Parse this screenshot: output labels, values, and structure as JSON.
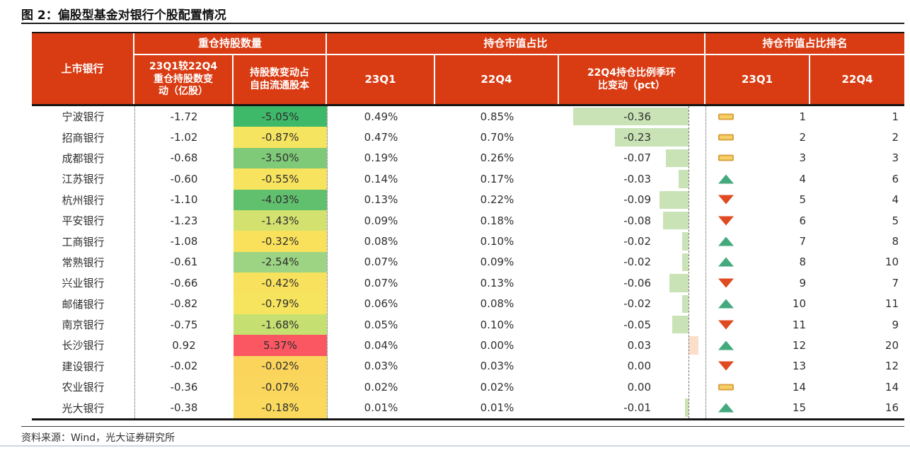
{
  "title": "图 2：偏股型基金对银行个股配置情况",
  "source": "资料来源：Wind，光大证券研究所",
  "colors": {
    "header_bg": "#d93b12",
    "header_text": "#ffffff",
    "bar_negative": "#c9e3b6",
    "bar_positive": "#fbdfca",
    "icon_up": "#44a97d",
    "icon_down": "#df4a20",
    "icon_dash_fill": "#f6cf65",
    "icon_dash_border": "#dba242"
  },
  "table": {
    "bank_header": "上市银行",
    "groups": [
      "重仓持股数量",
      "持仓市值占比",
      "持仓市值占比排名"
    ],
    "sub_headers": [
      "23Q1较22Q4\n重仓持股数变\n动（亿股）",
      "持股数变动占\n自由流通股本",
      "23Q1",
      "22Q4",
      "22Q4持仓比例季环\n比变动（pct）",
      "23Q1",
      "22Q4"
    ],
    "rows": [
      {
        "bank": "宁波银行",
        "chg_shares": "-1.72",
        "chg_pct": "-5.05%",
        "chg_pct_color": "#3eb969",
        "q1": "0.49%",
        "q4": "0.85%",
        "delta": "-0.36",
        "delta_val": -0.36,
        "icon": "dash",
        "rank_q1": "1",
        "rank_q4": "1"
      },
      {
        "bank": "招商银行",
        "chg_shares": "-1.02",
        "chg_pct": "-0.87%",
        "chg_pct_color": "#f5e45f",
        "q1": "0.47%",
        "q4": "0.70%",
        "delta": "-0.23",
        "delta_val": -0.23,
        "icon": "dash",
        "rank_q1": "2",
        "rank_q4": "2"
      },
      {
        "bank": "成都银行",
        "chg_shares": "-0.68",
        "chg_pct": "-3.50%",
        "chg_pct_color": "#7fca79",
        "q1": "0.19%",
        "q4": "0.26%",
        "delta": "-0.07",
        "delta_val": -0.07,
        "icon": "dash",
        "rank_q1": "3",
        "rank_q4": "3"
      },
      {
        "bank": "江苏银行",
        "chg_shares": "-0.60",
        "chg_pct": "-0.55%",
        "chg_pct_color": "#f7e35d",
        "q1": "0.14%",
        "q4": "0.17%",
        "delta": "-0.03",
        "delta_val": -0.03,
        "icon": "up",
        "rank_q1": "4",
        "rank_q4": "6"
      },
      {
        "bank": "杭州银行",
        "chg_shares": "-1.10",
        "chg_pct": "-4.03%",
        "chg_pct_color": "#60c06d",
        "q1": "0.13%",
        "q4": "0.22%",
        "delta": "-0.09",
        "delta_val": -0.09,
        "icon": "down",
        "rank_q1": "5",
        "rank_q4": "4"
      },
      {
        "bank": "平安银行",
        "chg_shares": "-1.23",
        "chg_pct": "-1.43%",
        "chg_pct_color": "#d3e26f",
        "q1": "0.09%",
        "q4": "0.18%",
        "delta": "-0.08",
        "delta_val": -0.08,
        "icon": "down",
        "rank_q1": "6",
        "rank_q4": "5"
      },
      {
        "bank": "工商银行",
        "chg_shares": "-1.08",
        "chg_pct": "-0.32%",
        "chg_pct_color": "#f9e15c",
        "q1": "0.08%",
        "q4": "0.10%",
        "delta": "-0.02",
        "delta_val": -0.02,
        "icon": "up",
        "rank_q1": "7",
        "rank_q4": "8"
      },
      {
        "bank": "常熟银行",
        "chg_shares": "-0.61",
        "chg_pct": "-2.54%",
        "chg_pct_color": "#9cd483",
        "q1": "0.07%",
        "q4": "0.09%",
        "delta": "-0.02",
        "delta_val": -0.02,
        "icon": "up",
        "rank_q1": "8",
        "rank_q4": "10"
      },
      {
        "bank": "兴业银行",
        "chg_shares": "-0.66",
        "chg_pct": "-0.42%",
        "chg_pct_color": "#f8e25d",
        "q1": "0.07%",
        "q4": "0.13%",
        "delta": "-0.06",
        "delta_val": -0.06,
        "icon": "down",
        "rank_q1": "9",
        "rank_q4": "7"
      },
      {
        "bank": "邮储银行",
        "chg_shares": "-0.82",
        "chg_pct": "-0.79%",
        "chg_pct_color": "#f6e45e",
        "q1": "0.06%",
        "q4": "0.08%",
        "delta": "-0.02",
        "delta_val": -0.02,
        "icon": "up",
        "rank_q1": "10",
        "rank_q4": "11"
      },
      {
        "bank": "南京银行",
        "chg_shares": "-0.75",
        "chg_pct": "-1.68%",
        "chg_pct_color": "#c5df71",
        "q1": "0.05%",
        "q4": "0.10%",
        "delta": "-0.05",
        "delta_val": -0.05,
        "icon": "down",
        "rank_q1": "11",
        "rank_q4": "9"
      },
      {
        "bank": "长沙银行",
        "chg_shares": "0.92",
        "chg_pct": "5.37%",
        "chg_pct_color": "#fa5763",
        "q1": "0.04%",
        "q4": "0.00%",
        "delta": "0.03",
        "delta_val": 0.03,
        "icon": "up",
        "rank_q1": "12",
        "rank_q4": "20"
      },
      {
        "bank": "建设银行",
        "chg_shares": "-0.02",
        "chg_pct": "-0.02%",
        "chg_pct_color": "#fbd45c",
        "q1": "0.03%",
        "q4": "0.03%",
        "delta": "0.00",
        "delta_val": 0,
        "icon": "down",
        "rank_q1": "13",
        "rank_q4": "12"
      },
      {
        "bank": "农业银行",
        "chg_shares": "-0.36",
        "chg_pct": "-0.07%",
        "chg_pct_color": "#fbd65c",
        "q1": "0.02%",
        "q4": "0.02%",
        "delta": "0.00",
        "delta_val": 0,
        "icon": "dash",
        "rank_q1": "14",
        "rank_q4": "14"
      },
      {
        "bank": "光大银行",
        "chg_shares": "-0.38",
        "chg_pct": "-0.18%",
        "chg_pct_color": "#fad95d",
        "q1": "0.01%",
        "q4": "0.01%",
        "delta": "-0.01",
        "delta_val": -0.01,
        "icon": "up",
        "rank_q1": "15",
        "rank_q4": "16"
      }
    ]
  },
  "chart_data": {
    "type": "table",
    "title": "图 2：偏股型基金对银行个股配置情况",
    "column_groups": [
      "上市银行",
      "重仓持股数量",
      "持仓市值占比",
      "持仓市值占比排名"
    ],
    "columns": [
      "上市银行",
      "23Q1较22Q4重仓持股数变动（亿股）",
      "持股数变动占自由流通股本",
      "持仓市值占比23Q1",
      "持仓市值占比22Q4",
      "22Q4持仓比例季环比变动（pct）",
      "持仓市值占比排名23Q1",
      "持仓市值占比排名22Q4"
    ],
    "rows": [
      [
        "宁波银行",
        -1.72,
        "-5.05%",
        "0.49%",
        "0.85%",
        -0.36,
        1,
        1
      ],
      [
        "招商银行",
        -1.02,
        "-0.87%",
        "0.47%",
        "0.70%",
        -0.23,
        2,
        2
      ],
      [
        "成都银行",
        -0.68,
        "-3.50%",
        "0.19%",
        "0.26%",
        -0.07,
        3,
        3
      ],
      [
        "江苏银行",
        -0.6,
        "-0.55%",
        "0.14%",
        "0.17%",
        -0.03,
        4,
        6
      ],
      [
        "杭州银行",
        -1.1,
        "-4.03%",
        "0.13%",
        "0.22%",
        -0.09,
        5,
        4
      ],
      [
        "平安银行",
        -1.23,
        "-1.43%",
        "0.09%",
        "0.18%",
        -0.08,
        6,
        5
      ],
      [
        "工商银行",
        -1.08,
        "-0.32%",
        "0.08%",
        "0.10%",
        -0.02,
        7,
        8
      ],
      [
        "常熟银行",
        -0.61,
        "-2.54%",
        "0.07%",
        "0.09%",
        -0.02,
        8,
        10
      ],
      [
        "兴业银行",
        -0.66,
        "-0.42%",
        "0.07%",
        "0.13%",
        -0.06,
        9,
        7
      ],
      [
        "邮储银行",
        -0.82,
        "-0.79%",
        "0.06%",
        "0.08%",
        -0.02,
        10,
        11
      ],
      [
        "南京银行",
        -0.75,
        "-1.68%",
        "0.05%",
        "0.10%",
        -0.05,
        11,
        9
      ],
      [
        "长沙银行",
        0.92,
        "5.37%",
        "0.04%",
        "0.00%",
        0.03,
        12,
        20
      ],
      [
        "建设银行",
        -0.02,
        "-0.02%",
        "0.03%",
        "0.03%",
        0.0,
        13,
        12
      ],
      [
        "农业银行",
        -0.36,
        "-0.07%",
        "0.02%",
        "0.02%",
        0.0,
        14,
        14
      ],
      [
        "光大银行",
        -0.38,
        "-0.18%",
        "0.01%",
        "0.01%",
        -0.01,
        15,
        16
      ]
    ],
    "notes": "资料来源：Wind，光大证券研究所；持股数变动占自由流通股本列为绿-黄-红色阶；季环比变动列含绿色(负)/橙色(正)数据条；排名列含升(绿三角)/降(红三角)/持平(黄条)图标"
  }
}
